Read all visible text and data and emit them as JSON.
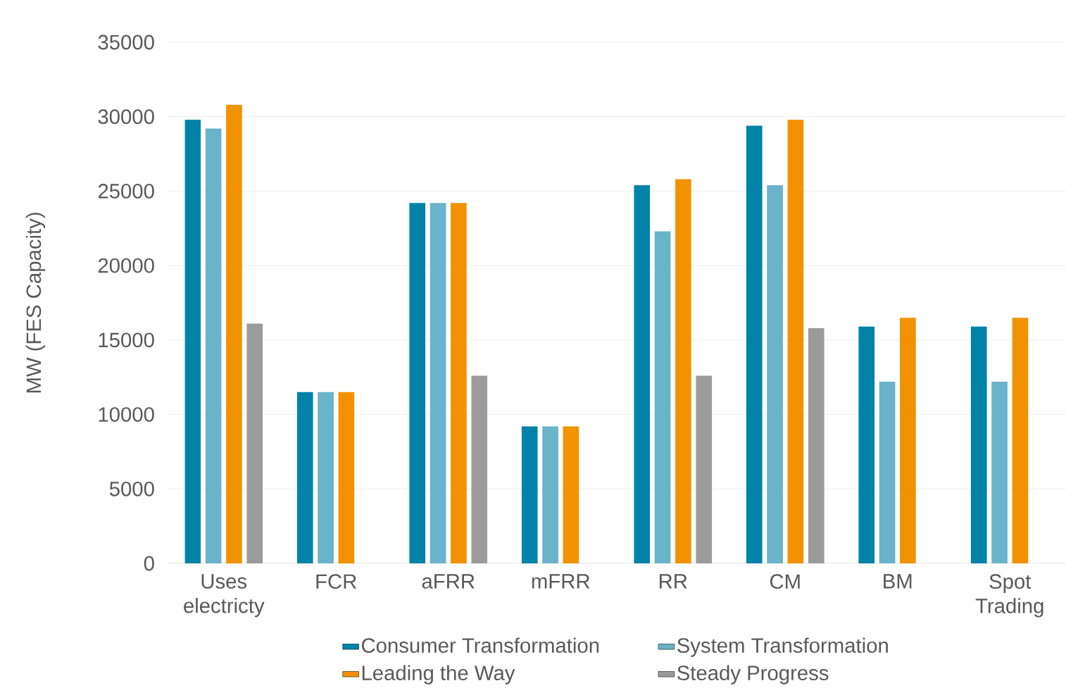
{
  "chart_data": {
    "type": "bar",
    "ylabel": "MW (FES Capacity)",
    "categories": [
      "Uses electricty",
      "FCR",
      "aFRR",
      "mFRR",
      "RR",
      "CM",
      "BM",
      "Spot Trading"
    ],
    "series": [
      {
        "name": "Consumer Transformation",
        "color": "#0083a9",
        "values": [
          29800,
          11500,
          24200,
          9200,
          25400,
          29400,
          15900,
          15900
        ]
      },
      {
        "name": "System Transformation",
        "color": "#69b3cb",
        "values": [
          29200,
          11500,
          24200,
          9200,
          22300,
          25400,
          12200,
          12200
        ]
      },
      {
        "name": "Leading the Way",
        "color": "#f39200",
        "values": [
          30800,
          11500,
          24200,
          9200,
          25800,
          29800,
          16500,
          16500
        ]
      },
      {
        "name": "Steady Progress",
        "color": "#9b9b9b",
        "values": [
          16100,
          null,
          12600,
          null,
          12600,
          15800,
          null,
          null
        ]
      }
    ],
    "ylim": [
      0,
      35000
    ],
    "yticks": [
      0,
      5000,
      10000,
      15000,
      20000,
      25000,
      30000,
      35000
    ],
    "grid": "y",
    "legend": "bottom"
  }
}
